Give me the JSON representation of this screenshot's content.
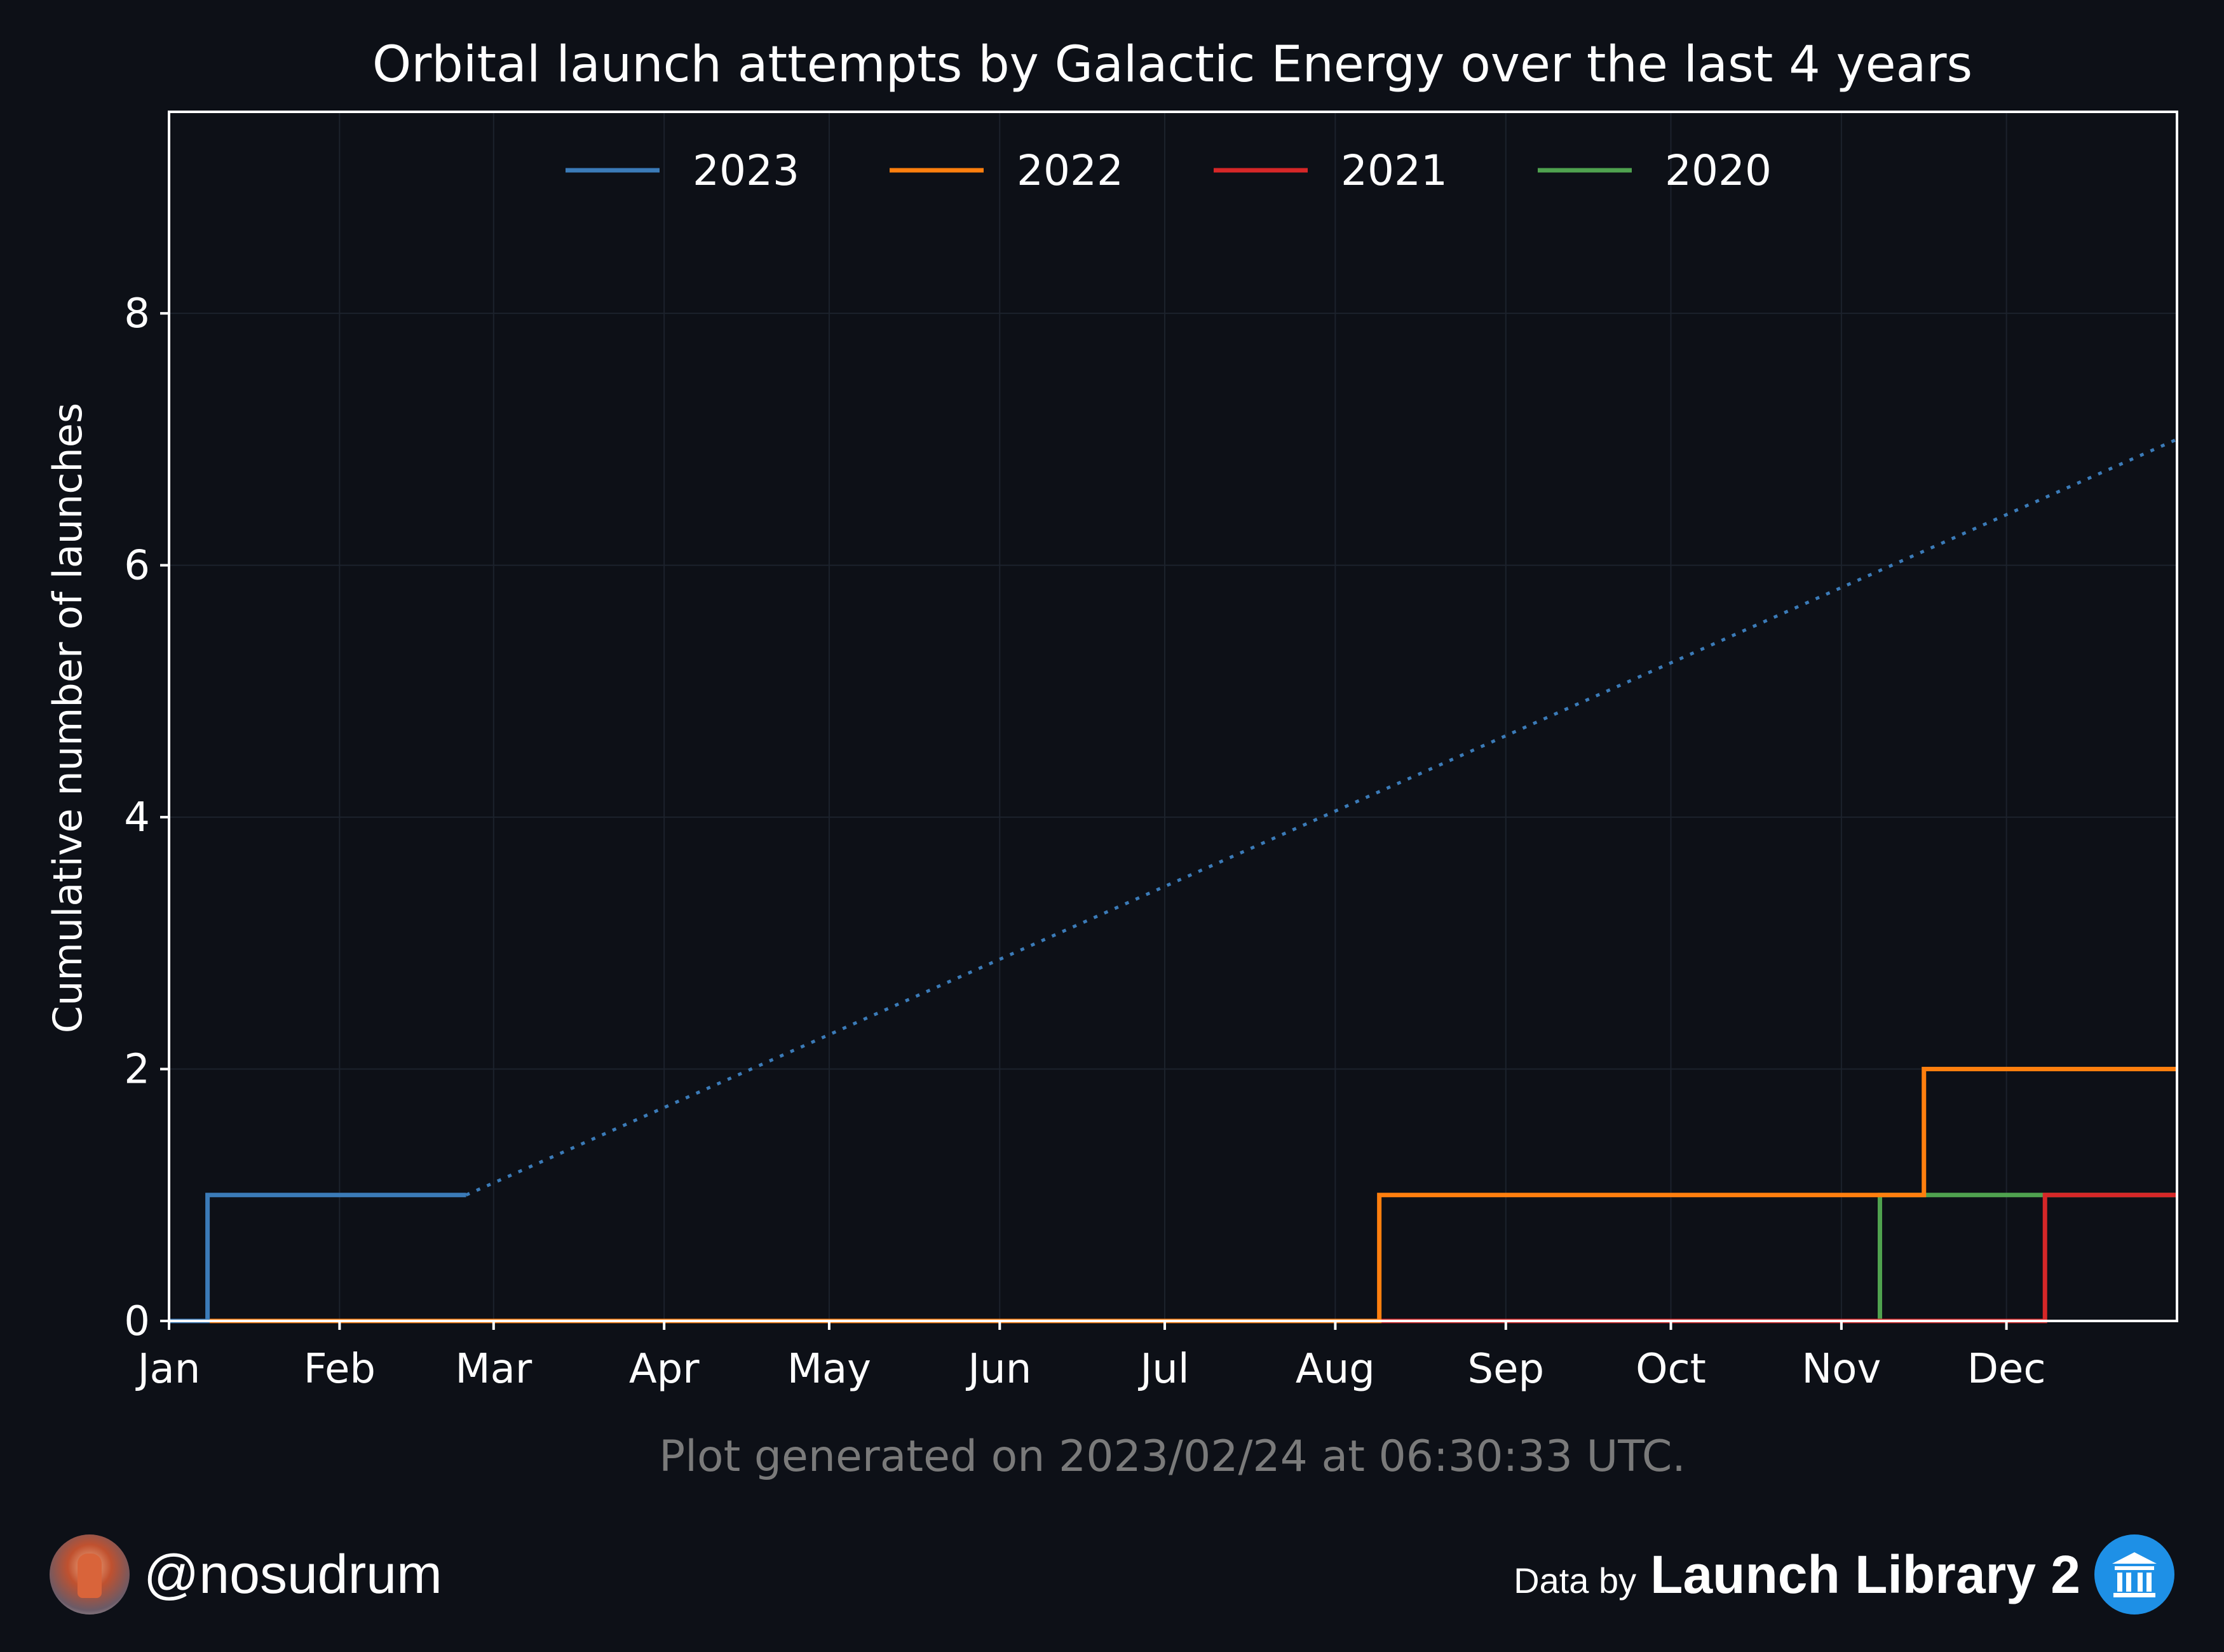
{
  "chart_data": {
    "type": "line",
    "title": "Orbital launch attempts by Galactic Energy over the last 4 years",
    "xlabel": "",
    "ylabel": "Cumulative number of launches",
    "x_ticks": [
      "Jan",
      "Feb",
      "Mar",
      "Apr",
      "May",
      "Jun",
      "Jul",
      "Aug",
      "Sep",
      "Oct",
      "Nov",
      "Dec"
    ],
    "x_tick_days": [
      1,
      32,
      60,
      91,
      121,
      152,
      182,
      213,
      244,
      274,
      305,
      335
    ],
    "xlim": [
      1,
      366
    ],
    "ylim": [
      0,
      9.6
    ],
    "y_ticks": [
      0,
      2,
      4,
      6,
      8
    ],
    "grid": true,
    "legend_position": "top-center",
    "series": [
      {
        "name": "2023",
        "color": "#3b7bb8",
        "step": true,
        "points": [
          [
            1,
            0
          ],
          [
            8,
            0
          ],
          [
            8,
            1
          ],
          [
            55,
            1
          ]
        ],
        "projection": [
          [
            55,
            1
          ],
          [
            366,
            7
          ]
        ]
      },
      {
        "name": "2022",
        "color": "#ff7f0e",
        "step": true,
        "points": [
          [
            1,
            0
          ],
          [
            221,
            0
          ],
          [
            221,
            1
          ],
          [
            320,
            1
          ],
          [
            320,
            2
          ],
          [
            366,
            2
          ]
        ]
      },
      {
        "name": "2021",
        "color": "#d62728",
        "step": true,
        "points": [
          [
            1,
            0
          ],
          [
            342,
            0
          ],
          [
            342,
            1
          ],
          [
            366,
            1
          ]
        ]
      },
      {
        "name": "2020",
        "color": "#4fa24f",
        "step": true,
        "points": [
          [
            1,
            0
          ],
          [
            312,
            0
          ],
          [
            312,
            1
          ],
          [
            366,
            1
          ]
        ]
      }
    ],
    "footnote": "Plot generated on 2023/02/24 at 06:30:33 UTC."
  },
  "footer": {
    "handle": "@nosudrum",
    "data_by": "Data by",
    "brand": "Launch Library 2",
    "avatar_icon": "astronaut-avatar-icon",
    "brand_icon": "launch-library-logo-icon"
  },
  "colors": {
    "background": "#0d1017",
    "text": "#ffffff",
    "footnote": "#7a7a7a",
    "grid": "#1c222c"
  }
}
